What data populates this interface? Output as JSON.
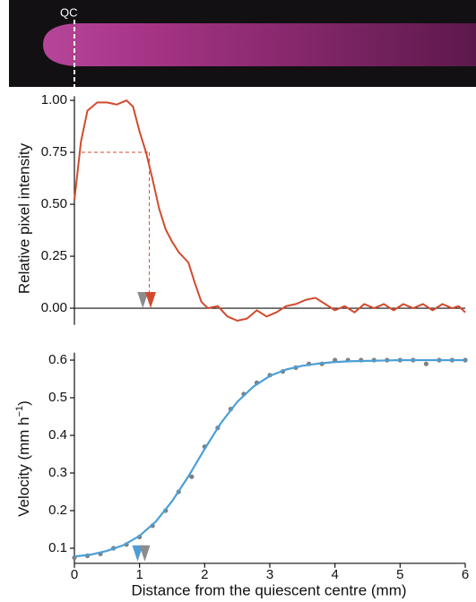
{
  "image": {
    "label": "QC"
  },
  "chart_data": [
    {
      "type": "line",
      "ylabel": "Relative pixel intensity",
      "xlim": [
        0,
        6
      ],
      "ylim": [
        -0.08,
        1.02
      ],
      "yticks": [
        {
          "value": 0,
          "label": "0.00"
        },
        {
          "value": 0.25,
          "label": "0.25"
        },
        {
          "value": 0.5,
          "label": "0.50"
        },
        {
          "value": 0.75,
          "label": "0.75"
        },
        {
          "value": 1,
          "label": "1.00"
        }
      ],
      "series": [
        {
          "color": "#d24a2e",
          "x": [
            0,
            0.1,
            0.2,
            0.35,
            0.5,
            0.65,
            0.8,
            0.9,
            1.0,
            1.1,
            1.2,
            1.3,
            1.4,
            1.5,
            1.6,
            1.75,
            1.85,
            1.95,
            2.05,
            2.2,
            2.35,
            2.5,
            2.65,
            2.8,
            2.95,
            3.1,
            3.25,
            3.4,
            3.55,
            3.7,
            3.85,
            4.0,
            4.15,
            4.3,
            4.45,
            4.6,
            4.75,
            4.9,
            5.05,
            5.2,
            5.35,
            5.5,
            5.65,
            5.8,
            5.9,
            6.0
          ],
          "values": [
            0.52,
            0.8,
            0.95,
            0.99,
            0.99,
            0.98,
            1.0,
            0.97,
            0.85,
            0.75,
            0.62,
            0.48,
            0.38,
            0.32,
            0.27,
            0.22,
            0.12,
            0.03,
            0.0,
            0.01,
            -0.04,
            -0.06,
            -0.05,
            -0.01,
            -0.04,
            -0.02,
            0.01,
            0.02,
            0.04,
            0.05,
            0.02,
            -0.01,
            0.01,
            -0.02,
            0.02,
            0.0,
            0.02,
            -0.01,
            0.02,
            0.0,
            0.02,
            -0.01,
            0.02,
            0.0,
            0.01,
            -0.02
          ]
        }
      ],
      "threshold": {
        "x": 1.15,
        "y": 0.75,
        "color": "#d24a2e"
      },
      "markers": [
        {
          "x": 1.05,
          "color": "#8c8c8c"
        },
        {
          "x": 1.17,
          "color": "#d24a2e"
        }
      ]
    },
    {
      "type": "scatter-fit",
      "ylabel": [
        "Velocity (mm h",
        "−1",
        ")"
      ],
      "xlabel": "Distance from the quiescent centre (mm)",
      "xlim": [
        0,
        6
      ],
      "ylim": [
        0.06,
        0.62
      ],
      "xticks": [
        0,
        1,
        2,
        3,
        4,
        5,
        6
      ],
      "yticks": [
        0.1,
        0.2,
        0.3,
        0.4,
        0.5,
        0.6
      ],
      "points": {
        "color": "#7f7f7f",
        "x": [
          0,
          0.2,
          0.4,
          0.6,
          0.8,
          1.0,
          1.2,
          1.4,
          1.6,
          1.8,
          2.0,
          2.2,
          2.4,
          2.6,
          2.8,
          3.0,
          3.2,
          3.4,
          3.6,
          3.8,
          4.0,
          4.2,
          4.4,
          4.6,
          4.8,
          5.0,
          5.2,
          5.4,
          5.6,
          5.8,
          6.0
        ],
        "values": [
          0.075,
          0.08,
          0.085,
          0.1,
          0.11,
          0.13,
          0.16,
          0.2,
          0.25,
          0.29,
          0.37,
          0.42,
          0.47,
          0.51,
          0.54,
          0.56,
          0.57,
          0.58,
          0.59,
          0.59,
          0.6,
          0.6,
          0.6,
          0.6,
          0.6,
          0.6,
          0.6,
          0.59,
          0.6,
          0.6,
          0.6
        ]
      },
      "fit": {
        "color": "#4c9fd6",
        "x": [
          0,
          0.25,
          0.5,
          0.75,
          1.0,
          1.25,
          1.5,
          1.75,
          2.0,
          2.25,
          2.5,
          2.75,
          3.0,
          3.25,
          3.5,
          3.75,
          4.0,
          4.25,
          4.5,
          4.75,
          5.0,
          5.25,
          5.5,
          5.75,
          6.0
        ],
        "values": [
          0.078,
          0.083,
          0.093,
          0.108,
          0.133,
          0.171,
          0.225,
          0.291,
          0.364,
          0.433,
          0.489,
          0.53,
          0.558,
          0.575,
          0.585,
          0.591,
          0.595,
          0.597,
          0.598,
          0.599,
          0.6,
          0.6,
          0.6,
          0.6,
          0.6
        ]
      },
      "markers": [
        {
          "x": 0.97,
          "color": "#4c9fd6"
        },
        {
          "x": 1.08,
          "color": "#8c8c8c"
        }
      ]
    }
  ]
}
